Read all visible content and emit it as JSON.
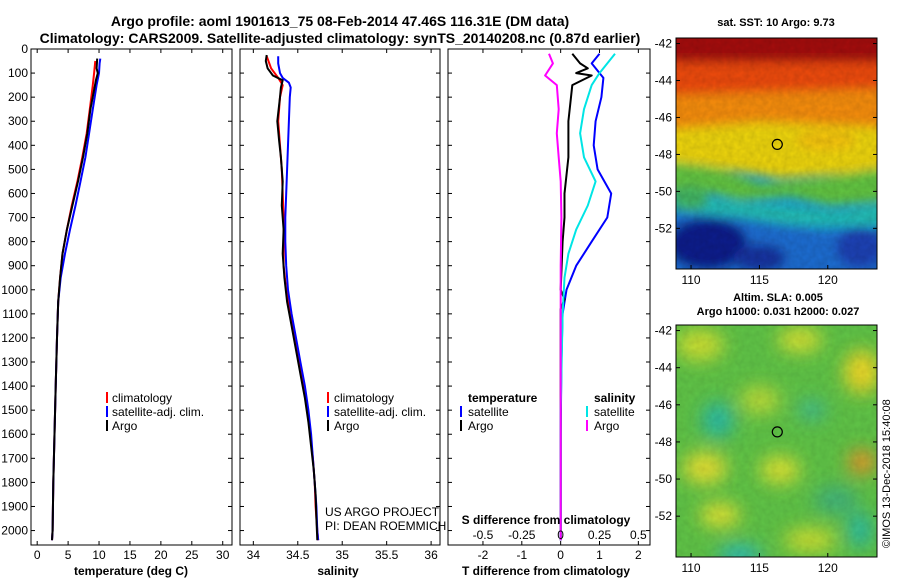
{
  "title_line1": "Argo profile: aoml 1901613_75 08-Feb-2014 47.46S 116.31E (DM data)",
  "title_line2": "Climatology: CARS2009. Satellite-adjusted climatology: synTS_20140208.nc (0.87d earlier)",
  "credit_line1": "US ARGO PROJECT",
  "credit_line2": "PI: DEAN ROEMMICH",
  "timestamp": "©IMOS 13-Dec-2018 15:40:08",
  "colors": {
    "climatology": "#ff0000",
    "satellite": "#0000ff",
    "argo": "#000000",
    "cyan": "#00e5e5",
    "magenta": "#ff00ff"
  },
  "chart_data": [
    {
      "id": "temperature",
      "type": "line",
      "xlabel": "temperature (deg C)",
      "xlim": [
        -1,
        31.5
      ],
      "xticks": [
        "0",
        "5",
        "10",
        "15",
        "20",
        "25",
        "30"
      ],
      "ylim": [
        2060,
        0
      ],
      "yticks": [
        "0",
        "100",
        "200",
        "300",
        "400",
        "500",
        "600",
        "700",
        "800",
        "900",
        "1000",
        "1100",
        "1200",
        "1300",
        "1400",
        "1500",
        "1600",
        "1700",
        "1800",
        "1900",
        "2000"
      ],
      "legend": [
        "climatology",
        "satellite-adj. clim.",
        "Argo"
      ],
      "series": [
        {
          "name": "climatology",
          "color": "#ff0000",
          "points": [
            [
              9.4,
              50
            ],
            [
              9.2,
              100
            ],
            [
              9.0,
              150
            ],
            [
              8.5,
              250
            ],
            [
              8.0,
              350
            ],
            [
              7.3,
              450
            ],
            [
              6.5,
              550
            ],
            [
              5.6,
              650
            ],
            [
              4.8,
              750
            ],
            [
              4.1,
              850
            ],
            [
              3.7,
              950
            ],
            [
              3.4,
              1050
            ],
            [
              3.2,
              1200
            ],
            [
              3.0,
              1400
            ],
            [
              2.8,
              1600
            ],
            [
              2.6,
              1800
            ],
            [
              2.5,
              2000
            ],
            [
              2.4,
              2040
            ]
          ]
        },
        {
          "name": "satellite-adj. clim.",
          "color": "#0000ff",
          "points": [
            [
              10.2,
              40
            ],
            [
              10.1,
              60
            ],
            [
              10.0,
              100
            ],
            [
              9.6,
              150
            ],
            [
              9.0,
              250
            ],
            [
              8.4,
              350
            ],
            [
              7.8,
              450
            ],
            [
              7.0,
              550
            ],
            [
              6.2,
              650
            ],
            [
              5.3,
              750
            ],
            [
              4.5,
              850
            ],
            [
              3.8,
              950
            ],
            [
              3.4,
              1050
            ],
            [
              3.2,
              1200
            ],
            [
              3.0,
              1400
            ],
            [
              2.8,
              1600
            ],
            [
              2.6,
              1800
            ],
            [
              2.5,
              2000
            ],
            [
              2.4,
              2040
            ]
          ]
        },
        {
          "name": "Argo",
          "color": "#000000",
          "points": [
            [
              9.7,
              40
            ],
            [
              9.6,
              80
            ],
            [
              9.8,
              100
            ],
            [
              9.5,
              130
            ],
            [
              9.2,
              170
            ],
            [
              8.6,
              250
            ],
            [
              8.1,
              350
            ],
            [
              7.4,
              450
            ],
            [
              6.6,
              550
            ],
            [
              5.7,
              650
            ],
            [
              4.8,
              750
            ],
            [
              4.1,
              850
            ],
            [
              3.7,
              950
            ],
            [
              3.4,
              1050
            ],
            [
              3.2,
              1200
            ],
            [
              3.0,
              1400
            ],
            [
              2.8,
              1600
            ],
            [
              2.6,
              1800
            ],
            [
              2.5,
              2000
            ],
            [
              2.4,
              2040
            ]
          ]
        }
      ]
    },
    {
      "id": "salinity",
      "type": "line",
      "xlabel": "salinity",
      "xlim": [
        33.85,
        36.1
      ],
      "xticks": [
        "34",
        "34.5",
        "35",
        "35.5",
        "36"
      ],
      "ylim": [
        2060,
        0
      ],
      "legend": [
        "climatology",
        "satellite-adj. clim.",
        "Argo"
      ],
      "series": [
        {
          "name": "climatology",
          "color": "#ff0000",
          "points": [
            [
              34.15,
              30
            ],
            [
              34.18,
              60
            ],
            [
              34.2,
              80
            ],
            [
              34.28,
              120
            ],
            [
              34.33,
              150
            ],
            [
              34.3,
              200
            ],
            [
              34.28,
              300
            ],
            [
              34.3,
              400
            ],
            [
              34.32,
              500
            ],
            [
              34.33,
              600
            ],
            [
              34.34,
              700
            ],
            [
              34.34,
              800
            ],
            [
              34.34,
              900
            ],
            [
              34.37,
              1000
            ],
            [
              34.42,
              1100
            ],
            [
              34.47,
              1200
            ],
            [
              34.52,
              1300
            ],
            [
              34.57,
              1400
            ],
            [
              34.61,
              1500
            ],
            [
              34.64,
              1600
            ],
            [
              34.67,
              1700
            ],
            [
              34.69,
              1800
            ],
            [
              34.7,
              1900
            ],
            [
              34.72,
              2000
            ],
            [
              34.73,
              2040
            ]
          ]
        },
        {
          "name": "satellite-adj. clim.",
          "color": "#0000ff",
          "points": [
            [
              34.28,
              30
            ],
            [
              34.28,
              60
            ],
            [
              34.3,
              100
            ],
            [
              34.33,
              120
            ],
            [
              34.4,
              140
            ],
            [
              34.42,
              160
            ],
            [
              34.41,
              200
            ],
            [
              34.4,
              300
            ],
            [
              34.39,
              400
            ],
            [
              34.38,
              500
            ],
            [
              34.37,
              600
            ],
            [
              34.36,
              700
            ],
            [
              34.36,
              800
            ],
            [
              34.37,
              900
            ],
            [
              34.39,
              1000
            ],
            [
              34.43,
              1100
            ],
            [
              34.48,
              1200
            ],
            [
              34.53,
              1300
            ],
            [
              34.58,
              1400
            ],
            [
              34.62,
              1500
            ],
            [
              34.65,
              1600
            ],
            [
              34.67,
              1700
            ],
            [
              34.69,
              1800
            ],
            [
              34.71,
              1900
            ],
            [
              34.72,
              2000
            ],
            [
              34.73,
              2040
            ]
          ]
        },
        {
          "name": "Argo",
          "color": "#000000",
          "points": [
            [
              34.15,
              25
            ],
            [
              34.14,
              50
            ],
            [
              34.16,
              80
            ],
            [
              34.22,
              110
            ],
            [
              34.33,
              130
            ],
            [
              34.31,
              160
            ],
            [
              34.3,
              200
            ],
            [
              34.27,
              300
            ],
            [
              34.29,
              380
            ],
            [
              34.31,
              450
            ],
            [
              34.33,
              550
            ],
            [
              34.32,
              650
            ],
            [
              34.34,
              750
            ],
            [
              34.33,
              850
            ],
            [
              34.35,
              950
            ],
            [
              34.38,
              1050
            ],
            [
              34.43,
              1150
            ],
            [
              34.48,
              1250
            ],
            [
              34.53,
              1350
            ],
            [
              34.58,
              1450
            ],
            [
              34.62,
              1550
            ],
            [
              34.65,
              1650
            ],
            [
              34.68,
              1750
            ],
            [
              34.7,
              1850
            ],
            [
              34.71,
              1950
            ],
            [
              34.72,
              2040
            ]
          ]
        }
      ]
    },
    {
      "id": "difference",
      "type": "line",
      "xlabel": "T difference from climatology",
      "xlabel_top": "S difference from climatology",
      "xlim": [
        -2.9,
        2.3
      ],
      "xticks": [
        "-2",
        "-1",
        "0",
        "1",
        "2"
      ],
      "xticks_top": [
        "-0.5",
        "-0.25",
        "0",
        "0.25",
        "0.5"
      ],
      "xticks_top_pos": [
        -2,
        -1,
        0,
        1,
        2
      ],
      "ylim": [
        2060,
        0
      ],
      "legend_temperature": [
        "temperature",
        "satellite",
        "Argo"
      ],
      "legend_salinity": [
        "salinity",
        "satellite",
        "Argo"
      ],
      "series": [
        {
          "name": "satellite T",
          "color": "#0000ff",
          "points": [
            [
              1.0,
              20
            ],
            [
              0.8,
              60
            ],
            [
              1.1,
              120
            ],
            [
              1.05,
              200
            ],
            [
              0.9,
              300
            ],
            [
              0.85,
              400
            ],
            [
              0.95,
              500
            ],
            [
              1.3,
              600
            ],
            [
              1.2,
              700
            ],
            [
              0.8,
              800
            ],
            [
              0.4,
              900
            ],
            [
              0.15,
              1000
            ],
            [
              0.05,
              1100
            ],
            [
              0.02,
              1300
            ],
            [
              0.0,
              1600
            ],
            [
              0.0,
              2000
            ],
            [
              0.0,
              2040
            ]
          ]
        },
        {
          "name": "Argo T",
          "color": "#000000",
          "points": [
            [
              0.3,
              20
            ],
            [
              0.5,
              60
            ],
            [
              0.7,
              80
            ],
            [
              0.4,
              100
            ],
            [
              0.8,
              110
            ],
            [
              0.3,
              150
            ],
            [
              0.2,
              300
            ],
            [
              0.2,
              450
            ],
            [
              0.1,
              600
            ],
            [
              0.1,
              700
            ],
            [
              0.05,
              800
            ],
            [
              0.0,
              1000
            ],
            [
              0.1,
              1040
            ],
            [
              0.0,
              1080
            ],
            [
              0.0,
              1300
            ],
            [
              0.0,
              2040
            ]
          ]
        },
        {
          "name": "satellite S",
          "color": "#00e5e5",
          "points": [
            [
              1.4,
              20
            ],
            [
              1.2,
              60
            ],
            [
              1.0,
              100
            ],
            [
              0.8,
              150
            ],
            [
              0.6,
              250
            ],
            [
              0.5,
              350
            ],
            [
              0.6,
              450
            ],
            [
              0.9,
              550
            ],
            [
              0.7,
              650
            ],
            [
              0.4,
              750
            ],
            [
              0.2,
              850
            ],
            [
              0.1,
              950
            ],
            [
              0.05,
              1100
            ],
            [
              0.0,
              1500
            ],
            [
              0.0,
              2040
            ]
          ]
        },
        {
          "name": "Argo S",
          "color": "#ff00ff",
          "points": [
            [
              -0.3,
              20
            ],
            [
              -0.2,
              60
            ],
            [
              -0.4,
              110
            ],
            [
              -0.1,
              150
            ],
            [
              -0.05,
              250
            ],
            [
              -0.1,
              350
            ],
            [
              -0.05,
              450
            ],
            [
              0.0,
              550
            ],
            [
              0.02,
              700
            ],
            [
              0.0,
              900
            ],
            [
              0.0,
              1500
            ],
            [
              0.0,
              2040
            ]
          ]
        }
      ]
    },
    {
      "id": "sst-map",
      "type": "heatmap",
      "title": "sat. SST: 10 Argo: 9.73",
      "xticks": [
        "110",
        "115",
        "120"
      ],
      "yticks": [
        "-42",
        "-44",
        "-46",
        "-48",
        "-50",
        "-52"
      ],
      "xlim": [
        108.9,
        123.6
      ],
      "ylim": [
        -54.2,
        -41.7
      ],
      "argo_position": [
        116.31,
        -47.46
      ]
    },
    {
      "id": "sla-map",
      "type": "heatmap",
      "title_line1": "Altim. SLA: 0.005",
      "title_line2": "Argo h1000: 0.031 h2000: 0.027",
      "xticks": [
        "110",
        "115",
        "120"
      ],
      "yticks": [
        "-42",
        "-44",
        "-46",
        "-48",
        "-50",
        "-52"
      ],
      "xlim": [
        108.9,
        123.6
      ],
      "ylim": [
        -54.2,
        -41.7
      ],
      "argo_position": [
        116.31,
        -47.46
      ]
    }
  ]
}
